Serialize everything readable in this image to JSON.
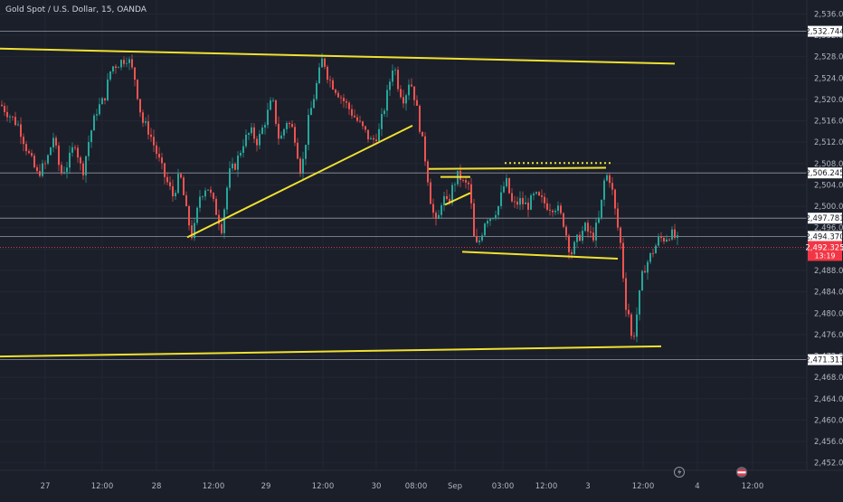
{
  "header": {
    "symbol_title": "Gold Spot / U.S. Dollar, 15, OANDA"
  },
  "chart_data": {
    "type": "candlestick",
    "ylim": [
      2450.6,
      2538.6
    ],
    "xlim": [
      0,
      885
    ],
    "price_ticks": [
      "2,536.000",
      "2,532.000",
      "2,528.000",
      "2,524.000",
      "2,520.000",
      "2,516.000",
      "2,512.000",
      "2,508.000",
      "2,504.000",
      "2,500.000",
      "2,496.000",
      "2,492.000",
      "2,488.000",
      "2,484.000",
      "2,480.000",
      "2,476.000",
      "2,472.000",
      "2,468.000",
      "2,464.000",
      "2,460.000",
      "2,456.000",
      "2,452.000"
    ],
    "time_ticks": [
      {
        "label": "27",
        "x": 50
      },
      {
        "label": "12:00",
        "x": 113
      },
      {
        "label": "28",
        "x": 173
      },
      {
        "label": "12:00",
        "x": 236
      },
      {
        "label": "29",
        "x": 294
      },
      {
        "label": "12:00",
        "x": 357
      },
      {
        "label": "30",
        "x": 416
      },
      {
        "label": "08:00",
        "x": 460
      },
      {
        "label": "Sep",
        "x": 503
      },
      {
        "label": "03:00",
        "x": 556
      },
      {
        "label": "12:00",
        "x": 604
      },
      {
        "label": "3",
        "x": 650
      },
      {
        "label": "12:00",
        "x": 711
      },
      {
        "label": "4",
        "x": 771
      },
      {
        "label": "12:00",
        "x": 832
      }
    ],
    "current_price": {
      "value": 2492.325,
      "label": "2,492.325",
      "countdown": "13:19",
      "color": "#f23645"
    },
    "level_labels": [
      {
        "value": 2532.744,
        "label": "2,532.744"
      },
      {
        "value": 2506.245,
        "label": "2,506.245"
      },
      {
        "value": 2497.781,
        "label": "2,497.781"
      },
      {
        "value": 2494.37,
        "label": "2,494.370"
      },
      {
        "value": 2471.313,
        "label": "2,471.313"
      }
    ],
    "price_path": [
      [
        0,
        2519
      ],
      [
        10,
        2517
      ],
      [
        20,
        2515
      ],
      [
        30,
        2510
      ],
      [
        40,
        2506
      ],
      [
        50,
        2508
      ],
      [
        58,
        2513
      ],
      [
        66,
        2506
      ],
      [
        74,
        2508
      ],
      [
        82,
        2512
      ],
      [
        90,
        2506
      ],
      [
        98,
        2513
      ],
      [
        106,
        2518
      ],
      [
        114,
        2520
      ],
      [
        122,
        2526
      ],
      [
        132,
        2527
      ],
      [
        140,
        2528
      ],
      [
        148,
        2524
      ],
      [
        156,
        2516
      ],
      [
        164,
        2514
      ],
      [
        172,
        2510
      ],
      [
        180,
        2506
      ],
      [
        190,
        2502
      ],
      [
        198,
        2506
      ],
      [
        206,
        2498
      ],
      [
        212,
        2494
      ],
      [
        220,
        2502
      ],
      [
        228,
        2504
      ],
      [
        236,
        2500
      ],
      [
        244,
        2496
      ],
      [
        252,
        2506
      ],
      [
        260,
        2508
      ],
      [
        268,
        2512
      ],
      [
        276,
        2514
      ],
      [
        284,
        2512
      ],
      [
        292,
        2516
      ],
      [
        300,
        2520
      ],
      [
        308,
        2512
      ],
      [
        316,
        2516
      ],
      [
        324,
        2514
      ],
      [
        332,
        2506
      ],
      [
        340,
        2516
      ],
      [
        348,
        2522
      ],
      [
        356,
        2528
      ],
      [
        362,
        2524
      ],
      [
        370,
        2522
      ],
      [
        378,
        2520
      ],
      [
        386,
        2518
      ],
      [
        394,
        2516
      ],
      [
        402,
        2514
      ],
      [
        410,
        2512
      ],
      [
        418,
        2514
      ],
      [
        426,
        2520
      ],
      [
        434,
        2527
      ],
      [
        440,
        2522
      ],
      [
        446,
        2520
      ],
      [
        452,
        2524
      ],
      [
        458,
        2520
      ],
      [
        464,
        2514
      ],
      [
        470,
        2508
      ],
      [
        476,
        2500
      ],
      [
        482,
        2496
      ],
      [
        488,
        2502
      ],
      [
        494,
        2500
      ],
      [
        500,
        2504
      ],
      [
        506,
        2506
      ],
      [
        512,
        2504
      ],
      [
        518,
        2504
      ],
      [
        524,
        2492
      ],
      [
        530,
        2494
      ],
      [
        536,
        2498
      ],
      [
        542,
        2498
      ],
      [
        550,
        2500
      ],
      [
        558,
        2505
      ],
      [
        566,
        2500
      ],
      [
        574,
        2501
      ],
      [
        582,
        2500
      ],
      [
        590,
        2502
      ],
      [
        598,
        2501
      ],
      [
        606,
        2500
      ],
      [
        614,
        2500
      ],
      [
        622,
        2497
      ],
      [
        630,
        2491
      ],
      [
        638,
        2494
      ],
      [
        646,
        2496
      ],
      [
        654,
        2494
      ],
      [
        662,
        2498
      ],
      [
        668,
        2506
      ],
      [
        674,
        2505
      ],
      [
        680,
        2498
      ],
      [
        686,
        2492
      ],
      [
        690,
        2482
      ],
      [
        694,
        2480
      ],
      [
        698,
        2474
      ],
      [
        704,
        2481
      ],
      [
        710,
        2488
      ],
      [
        716,
        2490
      ],
      [
        722,
        2492
      ],
      [
        728,
        2494
      ],
      [
        734,
        2494
      ],
      [
        740,
        2495
      ],
      [
        746,
        2494
      ],
      [
        750,
        2493
      ]
    ],
    "trendlines": [
      {
        "p1": [
          0,
          2529.5
        ],
        "p2": [
          746,
          2526.7
        ],
        "style": "solid"
      },
      {
        "p1": [
          0,
          2471.9
        ],
        "p2": [
          731,
          2473.8
        ],
        "style": "solid"
      },
      {
        "p1": [
          207,
          2494.2
        ],
        "p2": [
          456,
          2515.1
        ],
        "style": "solid"
      },
      {
        "p1": [
          474,
          2507.0
        ],
        "p2": [
          670,
          2507.2
        ],
        "style": "solid"
      },
      {
        "p1": [
          558,
          2508.1
        ],
        "p2": [
          678,
          2508.1
        ],
        "style": "dotted"
      },
      {
        "p1": [
          511,
          2491.5
        ],
        "p2": [
          683,
          2490.2
        ],
        "style": "solid"
      },
      {
        "p1": [
          487,
          2505.5
        ],
        "p2": [
          520,
          2505.5
        ],
        "style": "solid"
      },
      {
        "p1": [
          492,
          2500.3
        ],
        "p2": [
          520,
          2502.5
        ],
        "style": "solid"
      }
    ],
    "colors": {
      "up": "#26a69a",
      "down": "#ef5350",
      "drawing": "#f0e130",
      "background": "#1b1f2a",
      "grid": "#232734"
    }
  },
  "bottom_icons": [
    "lightning-icon",
    "flag-icon"
  ]
}
